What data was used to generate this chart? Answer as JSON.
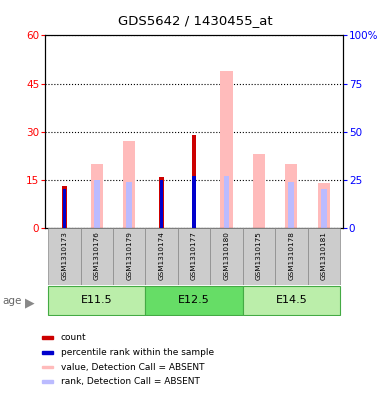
{
  "title": "GDS5642 / 1430455_at",
  "samples": [
    "GSM1310173",
    "GSM1310176",
    "GSM1310179",
    "GSM1310174",
    "GSM1310177",
    "GSM1310180",
    "GSM1310175",
    "GSM1310178",
    "GSM1310181"
  ],
  "age_groups": [
    {
      "label": "E11.5",
      "start": 0,
      "end": 3,
      "color": "#aaeaaa"
    },
    {
      "label": "E12.5",
      "start": 3,
      "end": 6,
      "color": "#66dd66"
    },
    {
      "label": "E14.5",
      "start": 6,
      "end": 9,
      "color": "#aaeaaa"
    }
  ],
  "value_absent": [
    0,
    20,
    27,
    0,
    0,
    49,
    23,
    20,
    14
  ],
  "rank_absent_pct": [
    0,
    25,
    24,
    0,
    0,
    27,
    0,
    24,
    20
  ],
  "count": [
    13,
    0,
    0,
    16,
    29,
    0,
    0,
    0,
    0
  ],
  "percentile_rank_pct": [
    20,
    0,
    0,
    25,
    27,
    0,
    0,
    0,
    0
  ],
  "left_yticks": [
    0,
    15,
    30,
    45,
    60
  ],
  "right_yticks": [
    0,
    25,
    50,
    75,
    100
  ],
  "ylim_left": [
    0,
    60
  ],
  "ylim_right": [
    0,
    100
  ],
  "count_color": "#cc0000",
  "percentile_color": "#0000cc",
  "value_absent_color": "#ffbbbb",
  "rank_absent_color": "#bbbbff",
  "bg_color_samples": "#cccccc",
  "legend_items": [
    {
      "label": "count",
      "color": "#cc0000"
    },
    {
      "label": "percentile rank within the sample",
      "color": "#0000cc"
    },
    {
      "label": "value, Detection Call = ABSENT",
      "color": "#ffbbbb"
    },
    {
      "label": "rank, Detection Call = ABSENT",
      "color": "#bbbbff"
    }
  ]
}
